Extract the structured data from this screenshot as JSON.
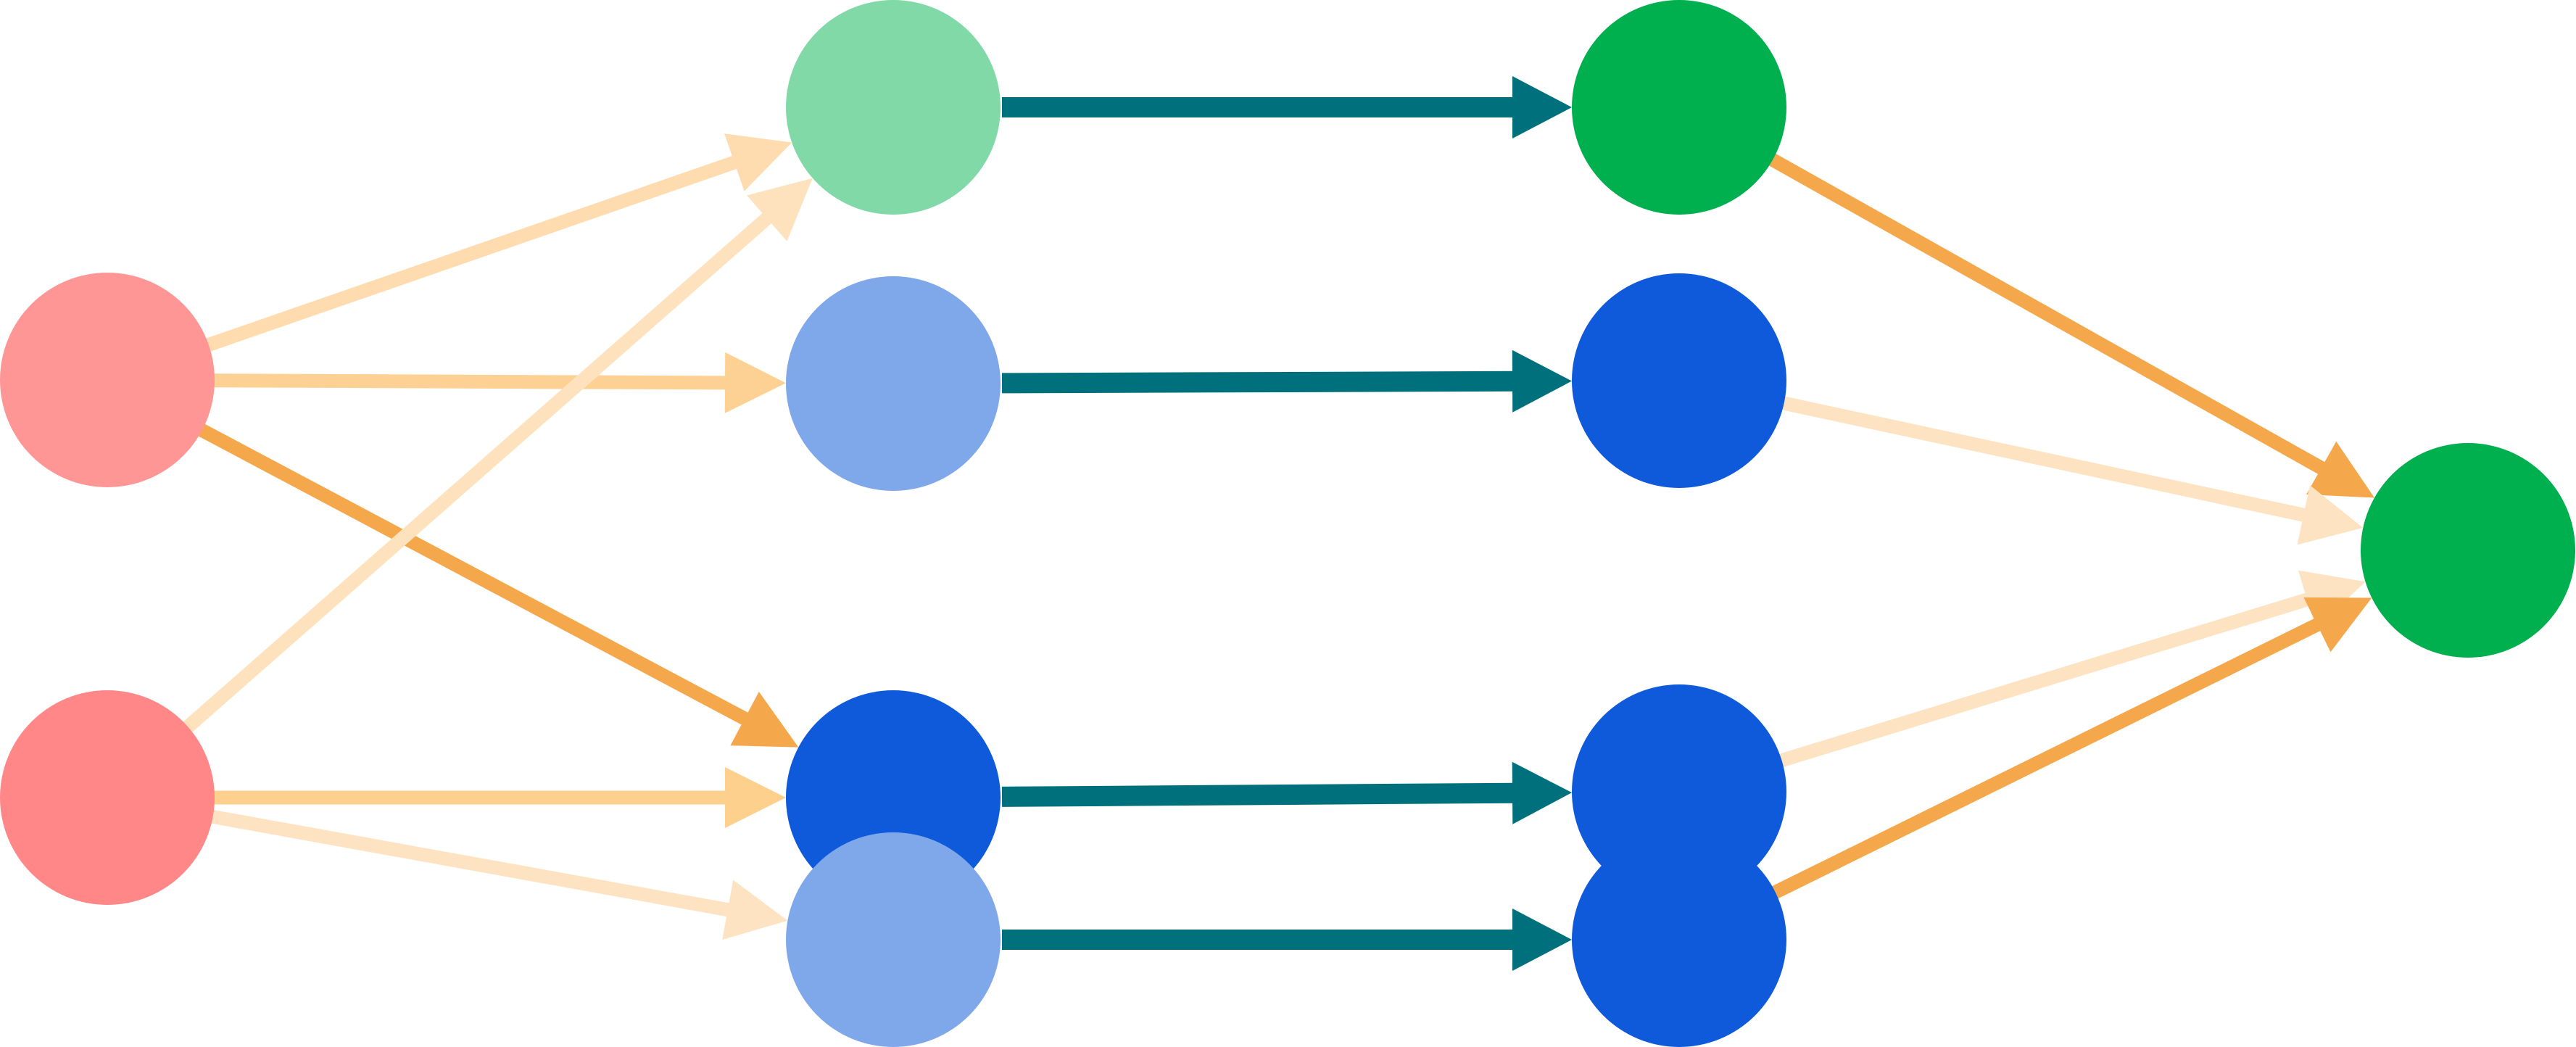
{
  "diagram": {
    "type": "neural-network",
    "layers": [
      {
        "id": "input",
        "nodes": [
          {
            "id": "in-1",
            "color": "#ff9696"
          },
          {
            "id": "in-2",
            "color": "#ff8787"
          }
        ]
      },
      {
        "id": "hidden-1",
        "nodes": [
          {
            "id": "h1-1",
            "color": "#82d9a8"
          },
          {
            "id": "h1-2",
            "color": "#7fa8ea"
          },
          {
            "id": "h1-3",
            "color": "#0e5adb"
          },
          {
            "id": "h1-4",
            "color": "#7fa8ea"
          }
        ]
      },
      {
        "id": "hidden-2",
        "nodes": [
          {
            "id": "h2-1",
            "color": "#00af4e"
          },
          {
            "id": "h2-2",
            "color": "#0e5adb"
          },
          {
            "id": "h2-3",
            "color": "#0e5adb"
          },
          {
            "id": "h2-4",
            "color": "#0e5adb"
          }
        ]
      },
      {
        "id": "output",
        "nodes": [
          {
            "id": "out-1",
            "color": "#00af4e"
          }
        ]
      }
    ],
    "edges": [
      {
        "from": "in-1",
        "to": "h1-1",
        "color": "#fedcb0",
        "kind": "weighted"
      },
      {
        "from": "in-1",
        "to": "h1-2",
        "color": "#fdd193",
        "kind": "weighted"
      },
      {
        "from": "in-1",
        "to": "h1-3",
        "color": "#f4a84b",
        "kind": "weighted"
      },
      {
        "from": "in-2",
        "to": "h1-1",
        "color": "#fee2be",
        "kind": "weighted"
      },
      {
        "from": "in-2",
        "to": "h1-3",
        "color": "#fdd08d",
        "kind": "weighted"
      },
      {
        "from": "in-2",
        "to": "h1-4",
        "color": "#fee3c3",
        "kind": "weighted"
      },
      {
        "from": "h1-1",
        "to": "h2-1",
        "color": "#00707c",
        "kind": "identity"
      },
      {
        "from": "h1-2",
        "to": "h2-2",
        "color": "#00707c",
        "kind": "identity"
      },
      {
        "from": "h1-3",
        "to": "h2-3",
        "color": "#00707c",
        "kind": "identity"
      },
      {
        "from": "h1-4",
        "to": "h2-4",
        "color": "#00707c",
        "kind": "identity"
      },
      {
        "from": "h2-1",
        "to": "out-1",
        "color": "#f4a84b",
        "kind": "weighted"
      },
      {
        "from": "h2-2",
        "to": "out-1",
        "color": "#fee3c3",
        "kind": "weighted"
      },
      {
        "from": "h2-3",
        "to": "out-1",
        "color": "#fee3c3",
        "kind": "weighted"
      },
      {
        "from": "h2-4",
        "to": "out-1",
        "color": "#f4a84b",
        "kind": "weighted"
      }
    ]
  }
}
